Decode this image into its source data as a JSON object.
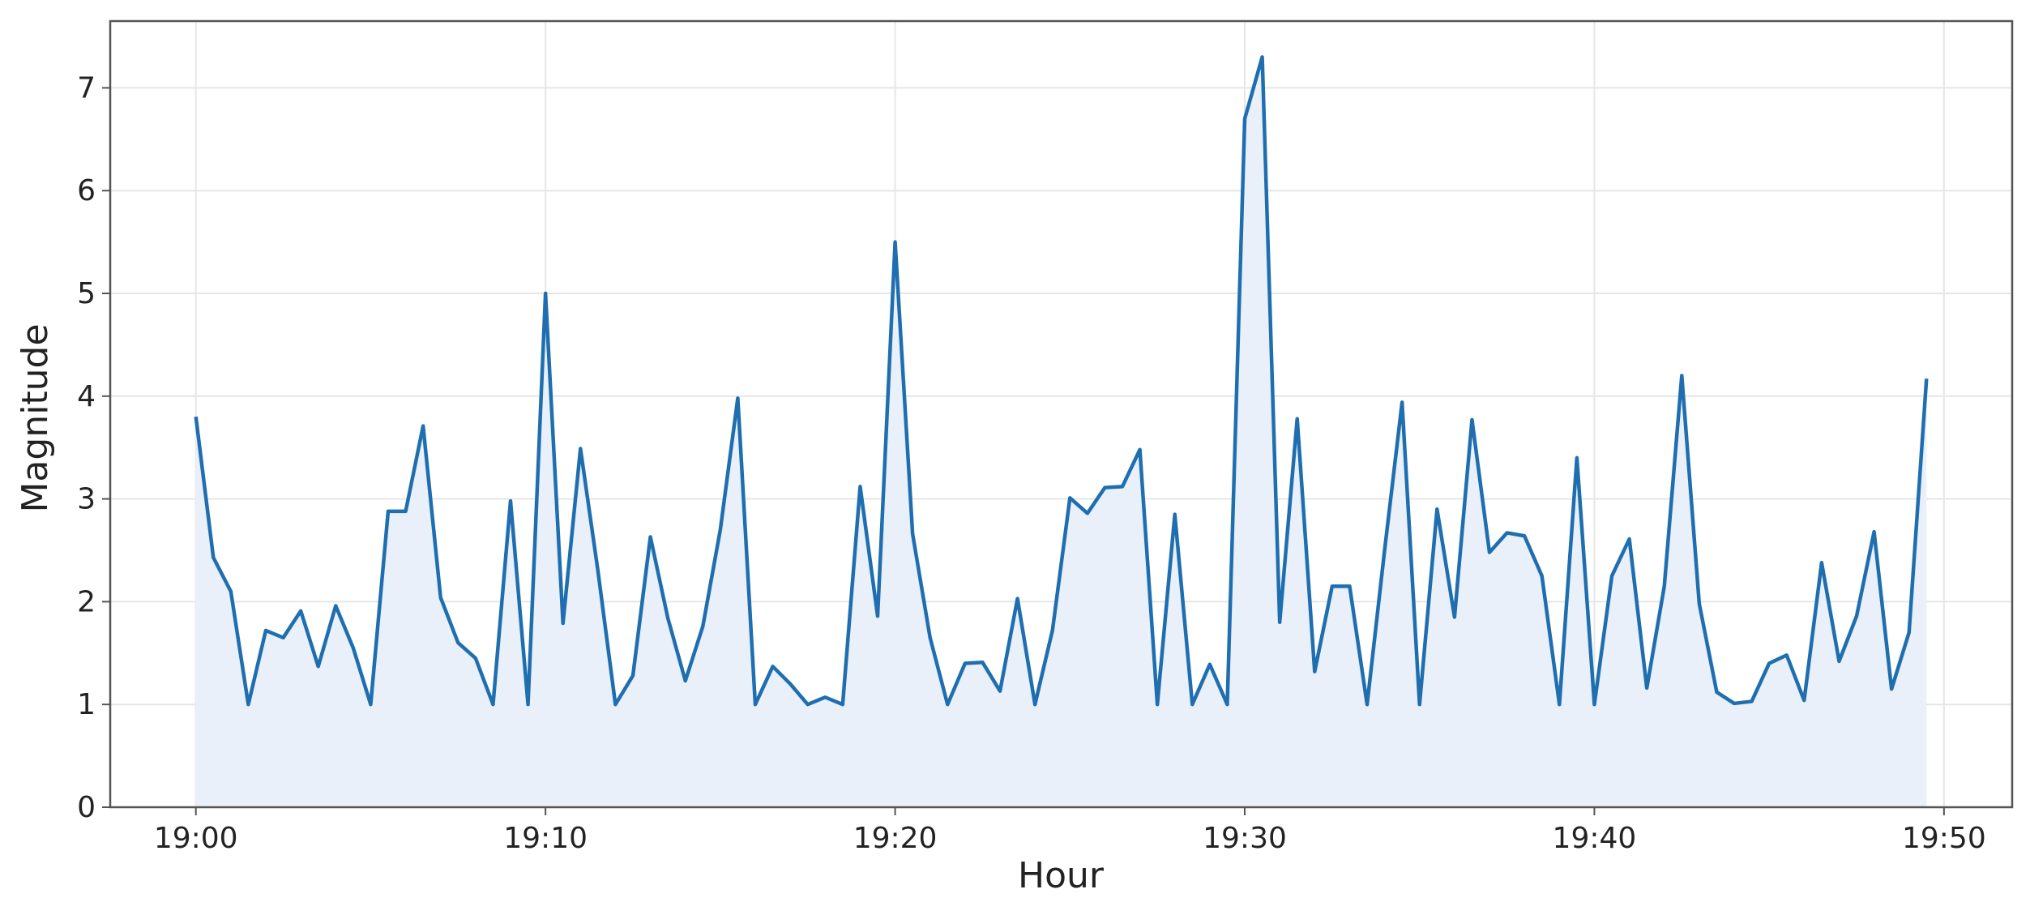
{
  "chart_data": {
    "type": "line",
    "x_label": "Hour",
    "y_label": "Magnitude",
    "x": [
      1140,
      1140.5,
      1141,
      1141.5,
      1142,
      1142.5,
      1143,
      1143.5,
      1144,
      1144.5,
      1145,
      1145.5,
      1146,
      1146.5,
      1147,
      1147.5,
      1148,
      1148.5,
      1149,
      1149.5,
      1150,
      1150.5,
      1151,
      1151.5,
      1152,
      1152.5,
      1153,
      1153.5,
      1154,
      1154.5,
      1155,
      1155.5,
      1156,
      1156.5,
      1157,
      1157.5,
      1158,
      1158.5,
      1159,
      1159.5,
      1160,
      1160.5,
      1161,
      1161.5,
      1162,
      1162.5,
      1163,
      1163.5,
      1164,
      1164.5,
      1165,
      1165.5,
      1166,
      1166.5,
      1167,
      1167.5,
      1168,
      1168.5,
      1169,
      1169.5,
      1170,
      1170.5,
      1171,
      1171.5,
      1172,
      1172.5,
      1173,
      1173.5,
      1174,
      1174.5,
      1175,
      1175.5,
      1176,
      1176.5,
      1177,
      1177.5,
      1178,
      1178.5,
      1179,
      1179.5,
      1180,
      1180.5,
      1181,
      1181.5,
      1182,
      1182.5,
      1183,
      1183.5,
      1184,
      1184.5,
      1185,
      1185.5,
      1186,
      1186.5,
      1187,
      1187.5,
      1188,
      1188.5,
      1189,
      1189.5
    ],
    "series": [
      {
        "color": "#1f6fb0",
        "fill_color": "#e9f0f9",
        "values": [
          3.8,
          2.43,
          2.1,
          1.0,
          1.72,
          1.65,
          1.91,
          1.37,
          1.96,
          1.55,
          1.0,
          2.88,
          2.88,
          3.71,
          2.04,
          1.6,
          1.45,
          1.0,
          2.98,
          1.0,
          5.0,
          1.79,
          3.49,
          2.3,
          1.0,
          1.28,
          2.63,
          1.84,
          1.23,
          1.76,
          2.7,
          3.98,
          1.0,
          1.37,
          1.2,
          1.0,
          1.07,
          1.0,
          3.12,
          1.86,
          5.5,
          2.66,
          1.65,
          1.0,
          1.4,
          1.41,
          1.13,
          2.03,
          1.0,
          1.72,
          3.01,
          2.86,
          3.11,
          3.12,
          3.48,
          1.0,
          2.85,
          1.0,
          1.39,
          1.0,
          6.7,
          7.3,
          1.8,
          3.78,
          1.32,
          2.15,
          2.15,
          1.0,
          2.5,
          3.94,
          1.0,
          2.9,
          1.85,
          3.77,
          2.48,
          2.67,
          2.64,
          2.25,
          1.0,
          3.4,
          1.0,
          2.25,
          2.61,
          1.16,
          2.15,
          4.2,
          1.98,
          1.12,
          1.01,
          1.03,
          1.4,
          1.48,
          1.04,
          2.38,
          1.42,
          1.86,
          2.68,
          1.15,
          1.7,
          4.17
        ]
      }
    ],
    "fill_area": true,
    "xlim": [
      1137.55,
      1191.95
    ],
    "xticks": [
      {
        "value": 1140,
        "label": "19:00"
      },
      {
        "value": 1150,
        "label": "19:10"
      },
      {
        "value": 1160,
        "label": "19:20"
      },
      {
        "value": 1170,
        "label": "19:30"
      },
      {
        "value": 1180,
        "label": "19:40"
      },
      {
        "value": 1190,
        "label": "19:50"
      }
    ],
    "ylim": [
      0,
      7.65
    ],
    "yticks": [
      0,
      1,
      2,
      3,
      4,
      5,
      6,
      7
    ],
    "grid": true
  }
}
